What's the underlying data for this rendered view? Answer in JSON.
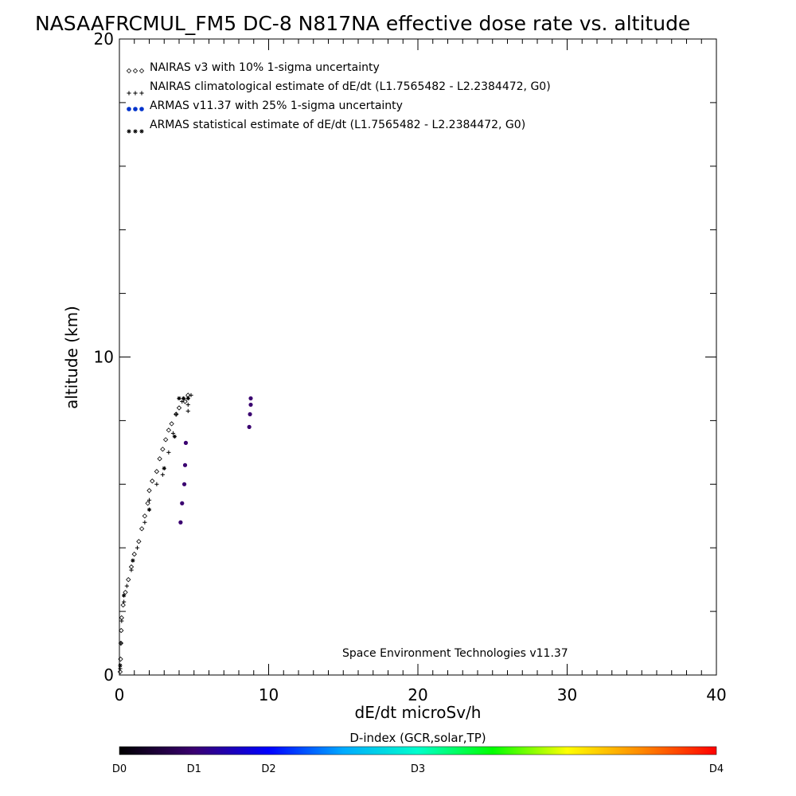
{
  "chart_data": {
    "type": "scatter",
    "title": "NASAAFRCMUL_FM5 DC-8   N817NA effective dose rate vs. altitude",
    "xlabel": "dE/dt microSv/h",
    "ylabel": "altitude (km)",
    "xlim": [
      0,
      40
    ],
    "ylim": [
      0,
      20
    ],
    "x_ticks": [
      "0",
      "10",
      "20",
      "30",
      "40"
    ],
    "y_ticks": [
      "0",
      "10",
      "20"
    ],
    "grid": false,
    "legend_placement": "top-left",
    "credit": "Space Environment Technologies v11.37",
    "series": [
      {
        "name": "NAIRAS v3 with 10% 1-sigma uncertainty",
        "marker": "diamond",
        "color": "#000000",
        "points": [
          [
            0.05,
            0.1
          ],
          [
            0.08,
            0.5
          ],
          [
            0.1,
            1.0
          ],
          [
            0.12,
            1.4
          ],
          [
            0.15,
            1.8
          ],
          [
            0.25,
            2.2
          ],
          [
            0.4,
            2.6
          ],
          [
            0.6,
            3.0
          ],
          [
            0.8,
            3.4
          ],
          [
            1.0,
            3.8
          ],
          [
            1.3,
            4.2
          ],
          [
            1.5,
            4.6
          ],
          [
            1.7,
            5.0
          ],
          [
            1.9,
            5.4
          ],
          [
            2.0,
            5.8
          ],
          [
            2.2,
            6.1
          ],
          [
            2.5,
            6.4
          ],
          [
            2.7,
            6.8
          ],
          [
            2.9,
            7.1
          ],
          [
            3.1,
            7.4
          ],
          [
            3.3,
            7.7
          ],
          [
            3.5,
            7.9
          ],
          [
            3.8,
            8.2
          ],
          [
            4.0,
            8.4
          ],
          [
            4.4,
            8.6
          ],
          [
            4.6,
            8.8
          ]
        ]
      },
      {
        "name": "NAIRAS climatological estimate of dE/dt (L1.7565482 - L2.2384472, G0)",
        "marker": "plus",
        "color": "#000000",
        "points": [
          [
            0.05,
            0.2
          ],
          [
            0.1,
            1.0
          ],
          [
            0.15,
            1.7
          ],
          [
            0.3,
            2.3
          ],
          [
            0.5,
            2.8
          ],
          [
            0.8,
            3.3
          ],
          [
            1.2,
            4.0
          ],
          [
            1.7,
            4.8
          ],
          [
            2.0,
            5.5
          ],
          [
            2.5,
            6.0
          ],
          [
            2.9,
            6.3
          ],
          [
            3.3,
            7.0
          ],
          [
            3.6,
            7.6
          ],
          [
            3.8,
            8.2
          ],
          [
            4.2,
            8.6
          ],
          [
            4.6,
            8.3
          ],
          [
            4.6,
            8.5
          ],
          [
            4.8,
            8.8
          ]
        ]
      },
      {
        "name": "ARMAS v11.37 with 25% 1-sigma uncertainty",
        "marker": "dot",
        "color": "#0033cc",
        "points": [
          [
            4.1,
            4.8
          ],
          [
            4.2,
            5.4
          ],
          [
            4.35,
            6.0
          ],
          [
            4.4,
            6.6
          ],
          [
            4.45,
            7.3
          ],
          [
            8.7,
            7.8
          ],
          [
            8.75,
            8.2
          ],
          [
            8.8,
            8.5
          ],
          [
            8.8,
            8.7
          ]
        ]
      },
      {
        "name": "ARMAS statistical estimate of dE/dt (L1.7565482 - L2.2384472, G0)",
        "marker": "asterisk",
        "color": "#000000",
        "points": [
          [
            0.05,
            0.3
          ],
          [
            0.3,
            2.5
          ],
          [
            0.9,
            3.6
          ],
          [
            2.0,
            5.2
          ],
          [
            3.0,
            6.5
          ],
          [
            3.7,
            7.5
          ],
          [
            4.0,
            8.7
          ],
          [
            4.3,
            8.7
          ],
          [
            4.6,
            8.7
          ]
        ]
      }
    ],
    "colorbar": {
      "title": "D-index (GCR,solar,TP)",
      "labels": [
        "D0",
        "D1",
        "D2",
        "D3",
        "D4"
      ],
      "label_positions": [
        0,
        0.125,
        0.25,
        0.5,
        1.0
      ],
      "gradient": [
        "#000000",
        "#3a0070",
        "#0000ff",
        "#00aaff",
        "#00ffcc",
        "#00ff00",
        "#ffff00",
        "#ff8800",
        "#ff0000"
      ]
    }
  }
}
